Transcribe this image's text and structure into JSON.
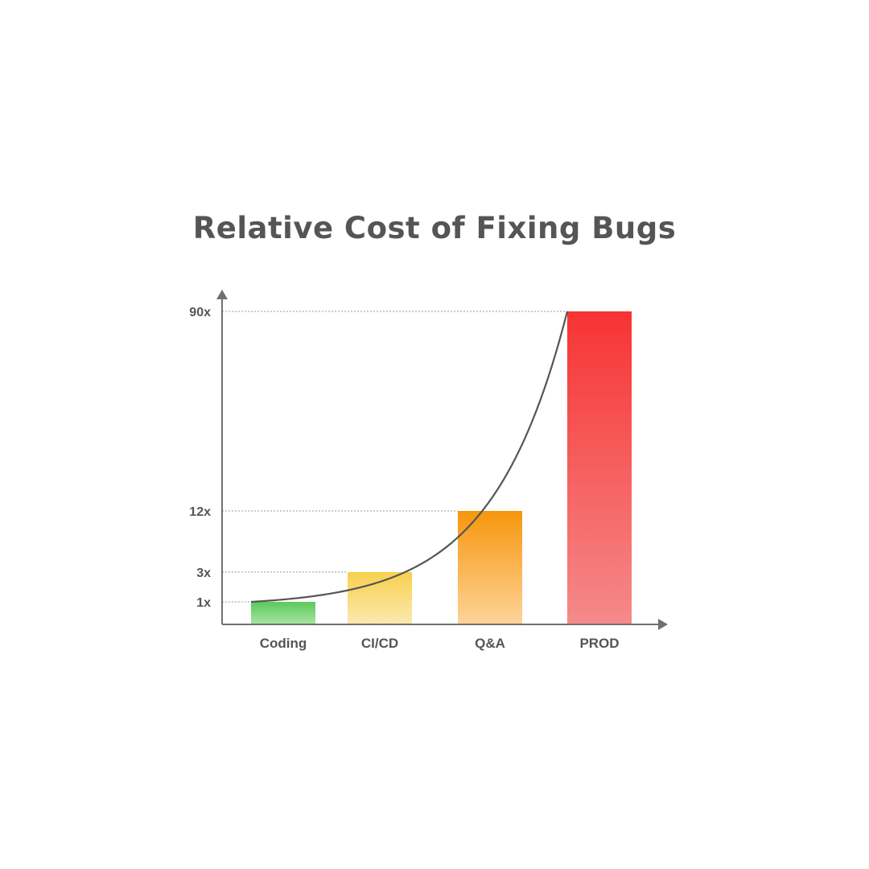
{
  "chart_data": {
    "type": "bar",
    "title": "Relative Cost of Fixing Bugs",
    "categories": [
      "Coding",
      "CI/CD",
      "Q&A",
      "PROD"
    ],
    "values": [
      1,
      3,
      12,
      90
    ],
    "y_tick_values": [
      1,
      3,
      12,
      90
    ],
    "y_tick_labels": [
      "1x",
      "3x",
      "12x",
      "90x"
    ],
    "grid": "dashed guide lines at tick values",
    "trend_curve": "exponential curve through bar tops",
    "colors": [
      {
        "top": "#5cc85c",
        "bottom": "#a8e6a0"
      },
      {
        "top": "#f7d04e",
        "bottom": "#fbe9b0"
      },
      {
        "top": "#f7960c",
        "bottom": "#fdd49a"
      },
      {
        "top": "#f73333",
        "bottom": "#f58a8a"
      }
    ],
    "axis_color": "#707070",
    "curve_color": "#555555"
  }
}
